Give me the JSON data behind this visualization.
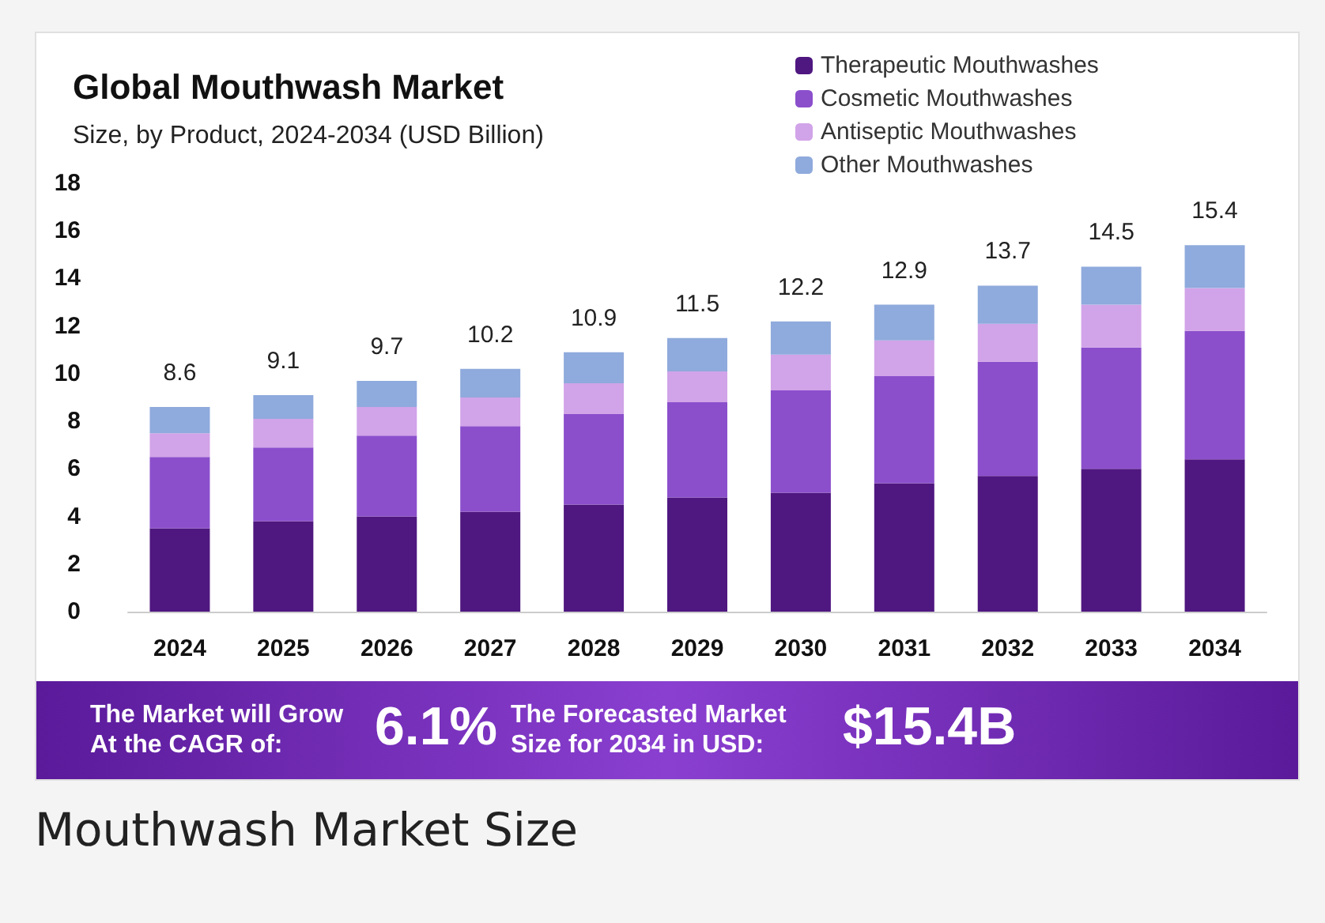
{
  "chart_data": {
    "type": "bar",
    "title": "Global Mouthwash Market",
    "subtitle": "Size, by Product, 2024-2034 (USD Billion)",
    "categories": [
      "2024",
      "2025",
      "2026",
      "2027",
      "2028",
      "2029",
      "2030",
      "2031",
      "2032",
      "2033",
      "2034"
    ],
    "stacked": true,
    "series": [
      {
        "name": "Therapeutic Mouthwashes",
        "color": "#4f1780",
        "values": [
          3.5,
          3.8,
          4.0,
          4.2,
          4.5,
          4.8,
          5.0,
          5.4,
          5.7,
          6.0,
          6.4
        ]
      },
      {
        "name": "Cosmetic Mouthwashes",
        "color": "#8b4fcc",
        "values": [
          3.0,
          3.1,
          3.4,
          3.6,
          3.8,
          4.0,
          4.3,
          4.5,
          4.8,
          5.1,
          5.4
        ]
      },
      {
        "name": "Antiseptic Mouthwashes",
        "color": "#d1a3e8",
        "values": [
          1.0,
          1.2,
          1.2,
          1.2,
          1.3,
          1.3,
          1.5,
          1.5,
          1.6,
          1.8,
          1.8
        ]
      },
      {
        "name": "Other Mouthwashes",
        "color": "#8faadc",
        "values": [
          1.1,
          1.0,
          1.1,
          1.2,
          1.3,
          1.4,
          1.4,
          1.5,
          1.6,
          1.6,
          1.8
        ]
      }
    ],
    "totals": [
      "8.6",
      "9.1",
      "9.7",
      "10.2",
      "10.9",
      "11.5",
      "12.2",
      "12.9",
      "13.7",
      "14.5",
      "15.4"
    ],
    "ylim": [
      0,
      18
    ],
    "yticks": [
      0,
      2,
      4,
      6,
      8,
      10,
      12,
      14,
      16,
      18
    ],
    "grid": false,
    "legend": "top right",
    "annotations": [
      "The Market will Grow At the CAGR of:",
      "6.1%",
      "The Forecasted Market Size for 2034 in USD:",
      "$15.4B",
      "Mouthwash Market Size"
    ]
  }
}
